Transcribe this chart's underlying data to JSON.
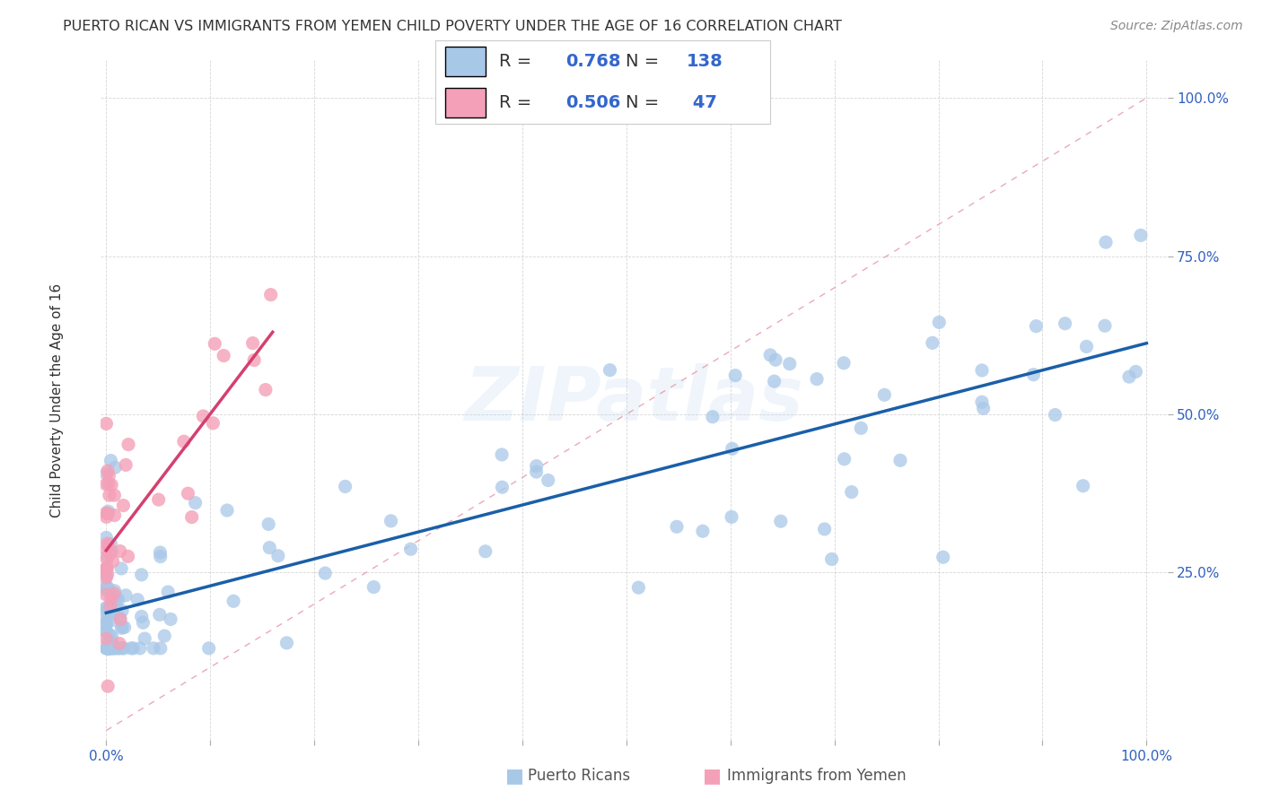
{
  "title": "PUERTO RICAN VS IMMIGRANTS FROM YEMEN CHILD POVERTY UNDER THE AGE OF 16 CORRELATION CHART",
  "source": "Source: ZipAtlas.com",
  "ylabel": "Child Poverty Under the Age of 16",
  "legend_blue_r": "0.768",
  "legend_blue_n": "138",
  "legend_pink_r": "0.506",
  "legend_pink_n": "47",
  "blue_color": "#a8c8e8",
  "pink_color": "#f4a0b8",
  "blue_line_color": "#1a5fa8",
  "pink_line_color": "#d44070",
  "diag_line_color": "#e8a0b0",
  "watermark": "ZIPatlas",
  "title_fontsize": 11.5,
  "source_fontsize": 10,
  "legend_fontsize": 14,
  "tick_fontsize": 11,
  "ylabel_fontsize": 11
}
